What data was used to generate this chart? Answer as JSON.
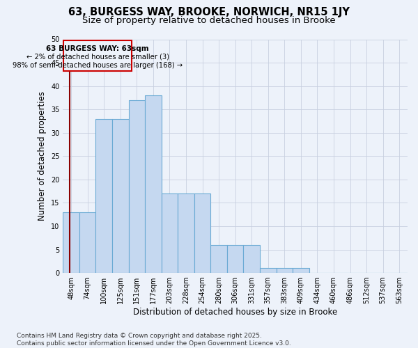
{
  "title_line1": "63, BURGESS WAY, BROOKE, NORWICH, NR15 1JY",
  "title_line2": "Size of property relative to detached houses in Brooke",
  "xlabel": "Distribution of detached houses by size in Brooke",
  "ylabel": "Number of detached properties",
  "categories": [
    "48sqm",
    "74sqm",
    "100sqm",
    "125sqm",
    "151sqm",
    "177sqm",
    "203sqm",
    "228sqm",
    "254sqm",
    "280sqm",
    "306sqm",
    "331sqm",
    "357sqm",
    "383sqm",
    "409sqm",
    "434sqm",
    "460sqm",
    "486sqm",
    "512sqm",
    "537sqm",
    "563sqm"
  ],
  "values": [
    13,
    13,
    33,
    33,
    37,
    38,
    17,
    17,
    17,
    6,
    6,
    6,
    1,
    1,
    1,
    0,
    0,
    0,
    0,
    0,
    0
  ],
  "bar_color": "#c5d8f0",
  "bar_edge_color": "#6aaad4",
  "annotation_title": "63 BURGESS WAY: 63sqm",
  "annotation_line2": "← 2% of detached houses are smaller (3)",
  "annotation_line3": "98% of semi-detached houses are larger (168) →",
  "vline_color": "#8b0000",
  "box_edge_color": "#cc0000",
  "background_color": "#edf2fa",
  "grid_color": "#c8d0e0",
  "ylim": [
    0,
    50
  ],
  "yticks": [
    0,
    5,
    10,
    15,
    20,
    25,
    30,
    35,
    40,
    45,
    50
  ],
  "footer_line1": "Contains HM Land Registry data © Crown copyright and database right 2025.",
  "footer_line2": "Contains public sector information licensed under the Open Government Licence v3.0.",
  "title_fontsize": 10.5,
  "subtitle_fontsize": 9.5,
  "axis_label_fontsize": 8.5,
  "tick_fontsize": 7,
  "annot_fontsize": 7.5,
  "footer_fontsize": 6.5
}
